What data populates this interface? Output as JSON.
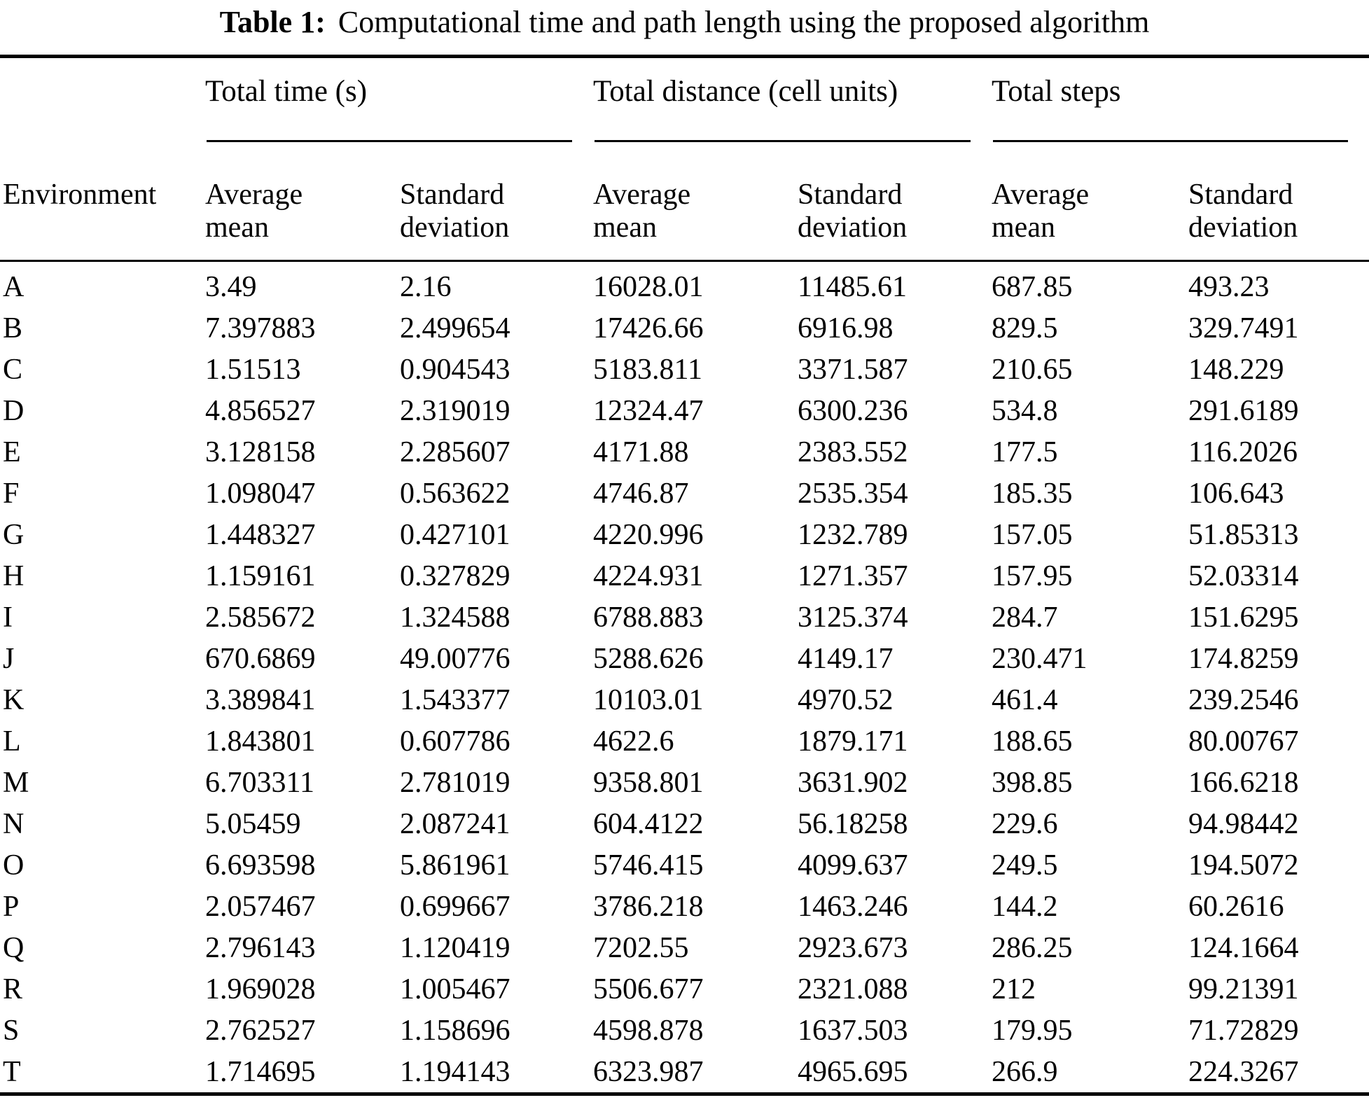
{
  "title": {
    "label": "Table 1:",
    "caption": "Computational time and path length using the proposed algorithm"
  },
  "table": {
    "corner_header": "Environment",
    "groups": [
      {
        "label": "Total time (s)",
        "sub": [
          "Average mean",
          "Standard deviation"
        ]
      },
      {
        "label": "Total distance (cell units)",
        "sub": [
          "Average mean",
          "Standard deviation"
        ]
      },
      {
        "label": "Total steps",
        "sub": [
          "Average mean",
          "Standard deviation"
        ]
      }
    ],
    "rows": [
      {
        "env": "A",
        "values": [
          "3.49",
          "2.16",
          "16028.01",
          "11485.61",
          "687.85",
          "493.23"
        ]
      },
      {
        "env": "B",
        "values": [
          "7.397883",
          "2.499654",
          "17426.66",
          "6916.98",
          "829.5",
          "329.7491"
        ]
      },
      {
        "env": "C",
        "values": [
          "1.51513",
          "0.904543",
          "5183.811",
          "3371.587",
          "210.65",
          "148.229"
        ]
      },
      {
        "env": "D",
        "values": [
          "4.856527",
          "2.319019",
          "12324.47",
          "6300.236",
          "534.8",
          "291.6189"
        ]
      },
      {
        "env": "E",
        "values": [
          "3.128158",
          "2.285607",
          "4171.88",
          "2383.552",
          "177.5",
          "116.2026"
        ]
      },
      {
        "env": "F",
        "values": [
          "1.098047",
          "0.563622",
          "4746.87",
          "2535.354",
          "185.35",
          "106.643"
        ]
      },
      {
        "env": "G",
        "values": [
          "1.448327",
          "0.427101",
          "4220.996",
          "1232.789",
          "157.05",
          "51.85313"
        ]
      },
      {
        "env": "H",
        "values": [
          "1.159161",
          "0.327829",
          "4224.931",
          "1271.357",
          "157.95",
          "52.03314"
        ]
      },
      {
        "env": "I",
        "values": [
          "2.585672",
          "1.324588",
          "6788.883",
          "3125.374",
          "284.7",
          "151.6295"
        ]
      },
      {
        "env": "J",
        "values": [
          "670.6869",
          "49.00776",
          "5288.626",
          "4149.17",
          "230.471",
          "174.8259"
        ]
      },
      {
        "env": "K",
        "values": [
          "3.389841",
          "1.543377",
          "10103.01",
          "4970.52",
          "461.4",
          "239.2546"
        ]
      },
      {
        "env": "L",
        "values": [
          "1.843801",
          "0.607786",
          "4622.6",
          "1879.171",
          "188.65",
          "80.00767"
        ]
      },
      {
        "env": "M",
        "values": [
          "6.703311",
          "2.781019",
          "9358.801",
          "3631.902",
          "398.85",
          "166.6218"
        ]
      },
      {
        "env": "N",
        "values": [
          "5.05459",
          "2.087241",
          "604.4122",
          "56.18258",
          "229.6",
          "94.98442"
        ]
      },
      {
        "env": "O",
        "values": [
          "6.693598",
          "5.861961",
          "5746.415",
          "4099.637",
          "249.5",
          "194.5072"
        ]
      },
      {
        "env": "P",
        "values": [
          "2.057467",
          "0.699667",
          "3786.218",
          "1463.246",
          "144.2",
          "60.2616"
        ]
      },
      {
        "env": "Q",
        "values": [
          "2.796143",
          "1.120419",
          "7202.55",
          "2923.673",
          "286.25",
          "124.1664"
        ]
      },
      {
        "env": "R",
        "values": [
          "1.969028",
          "1.005467",
          "5506.677",
          "2321.088",
          "212",
          "99.21391"
        ]
      },
      {
        "env": "S",
        "values": [
          "2.762527",
          "1.158696",
          "4598.878",
          "1637.503",
          "179.95",
          "71.72829"
        ]
      },
      {
        "env": "T",
        "values": [
          "1.714695",
          "1.194143",
          "6323.987",
          "4965.695",
          "266.9",
          "224.3267"
        ]
      }
    ]
  }
}
